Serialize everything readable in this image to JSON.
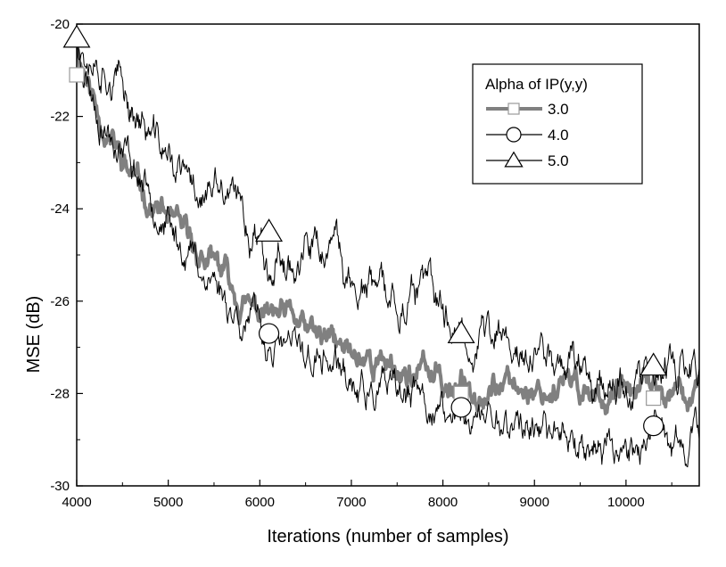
{
  "chart_data": {
    "type": "line",
    "xlabel": "Iterations (number of samples)",
    "ylabel": "MSE (dB)",
    "xlim": [
      4000,
      10800
    ],
    "ylim": [
      -30,
      -20
    ],
    "xticks": [
      "4000",
      "5000",
      "6000",
      "7000",
      "8000",
      "9000",
      "10000"
    ],
    "yticks": [
      "-20",
      "-22",
      "-24",
      "-26",
      "-28",
      "-30"
    ],
    "grid": false,
    "legend": {
      "title": "Alpha of IP(y,y)",
      "placement": "top-right"
    },
    "series": [
      {
        "name": "3.0",
        "color": "#808080",
        "marker": "square",
        "x": [
          4000,
          4200,
          4400,
          4600,
          4800,
          5000,
          5200,
          5400,
          5600,
          5800,
          6000,
          6300,
          6600,
          7000,
          7400,
          7800,
          8200,
          8600,
          9000,
          9400,
          9800,
          10200,
          10800
        ],
        "y": [
          -20.4,
          -21.6,
          -22.5,
          -23.1,
          -23.7,
          -24.2,
          -24.7,
          -25.1,
          -25.5,
          -25.9,
          -26.2,
          -26.6,
          -26.9,
          -27.2,
          -27.4,
          -27.6,
          -27.75,
          -27.85,
          -27.9,
          -27.95,
          -28.0,
          -28.0,
          -28.0
        ],
        "markers_x": [
          4000,
          8200,
          10300
        ],
        "markers_y": [
          -21.1,
          -28.0,
          -28.1
        ]
      },
      {
        "name": "4.0",
        "color": "#000000",
        "marker": "circle",
        "x": [
          4000,
          4200,
          4400,
          4600,
          4800,
          5000,
          5200,
          5400,
          5600,
          5800,
          6000,
          6300,
          6600,
          7000,
          7400,
          7800,
          8200,
          8600,
          9000,
          9400,
          9800,
          10200,
          10800
        ],
        "y": [
          -20.4,
          -21.7,
          -22.6,
          -23.3,
          -23.8,
          -24.3,
          -24.8,
          -25.3,
          -25.8,
          -26.2,
          -26.6,
          -27.0,
          -27.3,
          -27.7,
          -28.0,
          -28.3,
          -28.5,
          -28.65,
          -28.8,
          -28.9,
          -29.0,
          -29.05,
          -29.1
        ],
        "markers_x": [
          6100,
          8200,
          10300
        ],
        "markers_y": [
          -26.7,
          -28.3,
          -28.7
        ]
      },
      {
        "name": "5.0",
        "color": "#000000",
        "marker": "triangle",
        "x": [
          4000,
          4200,
          4400,
          4600,
          4800,
          5000,
          5200,
          5400,
          5600,
          5800,
          6000,
          6300,
          6600,
          7000,
          7400,
          7800,
          8200,
          8600,
          9000,
          9400,
          9800,
          10200,
          10800
        ],
        "y": [
          -20.1,
          -20.8,
          -21.5,
          -22.0,
          -22.5,
          -22.9,
          -23.3,
          -23.7,
          -24.0,
          -24.35,
          -24.7,
          -25.0,
          -25.3,
          -25.6,
          -25.9,
          -26.2,
          -26.5,
          -26.75,
          -26.95,
          -27.1,
          -27.25,
          -27.35,
          -27.5
        ],
        "markers_x": [
          4000,
          6100,
          8200,
          10300
        ],
        "markers_y": [
          -20.3,
          -24.5,
          -26.7,
          -27.4
        ]
      }
    ]
  }
}
